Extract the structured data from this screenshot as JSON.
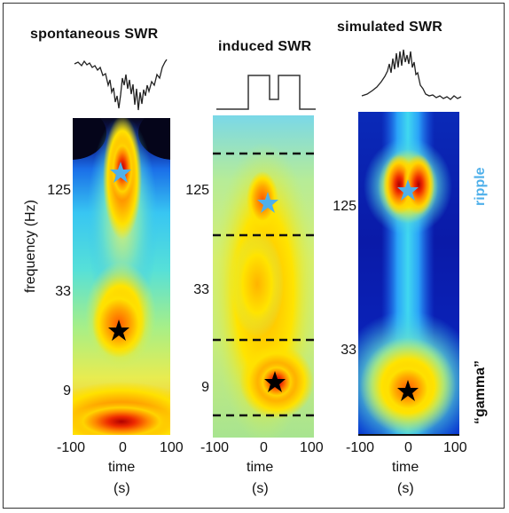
{
  "panels": [
    {
      "title": "spontaneous SWR",
      "x_ticks": [
        "-100",
        "0",
        "100"
      ],
      "y_ticks": [
        "125",
        "33",
        "9"
      ]
    },
    {
      "title": "induced SWR",
      "x_ticks": [
        "-100",
        "0",
        "100"
      ],
      "y_ticks": [
        "125",
        "33",
        "9"
      ]
    },
    {
      "title": "simulated SWR",
      "x_ticks": [
        "-100",
        "0",
        "100"
      ],
      "y_ticks": [
        "125",
        "33"
      ]
    }
  ],
  "axes": {
    "ylabel": "frequency (Hz)",
    "xlabel": "time",
    "xunit": "(s)"
  },
  "bands": {
    "ripple": "ripple",
    "gamma": "“gamma”"
  },
  "colors": {
    "ripple_star": "#4fb0ea",
    "gamma_star": "#000000",
    "ripple_label": "#4fb0ea"
  }
}
